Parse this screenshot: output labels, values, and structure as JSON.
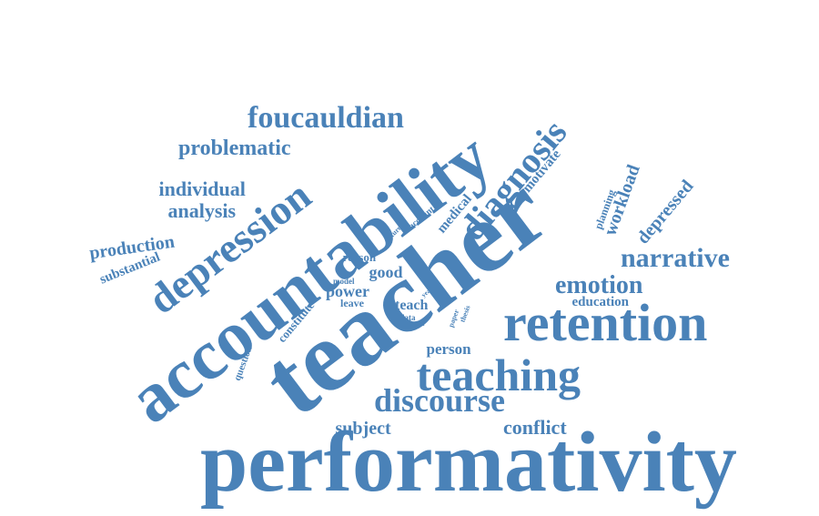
{
  "colors": {
    "word": "#4a82b8",
    "background": "#ffffff"
  },
  "words": [
    "performativity",
    "accountability",
    "teacher",
    "retention",
    "teaching",
    "discourse",
    "depression",
    "diagnosis",
    "foucauldian",
    "problematic",
    "individual",
    "analysis",
    "production",
    "substantial",
    "narrative",
    "emotion",
    "conflict",
    "subject",
    "workload",
    "depressed",
    "planning",
    "education",
    "medical",
    "motivate",
    "person",
    "good",
    "power",
    "teach",
    "reason",
    "model",
    "leave",
    "constitute",
    "question",
    "future",
    "account",
    "data",
    "most",
    "paper",
    "thesis",
    "year"
  ]
}
